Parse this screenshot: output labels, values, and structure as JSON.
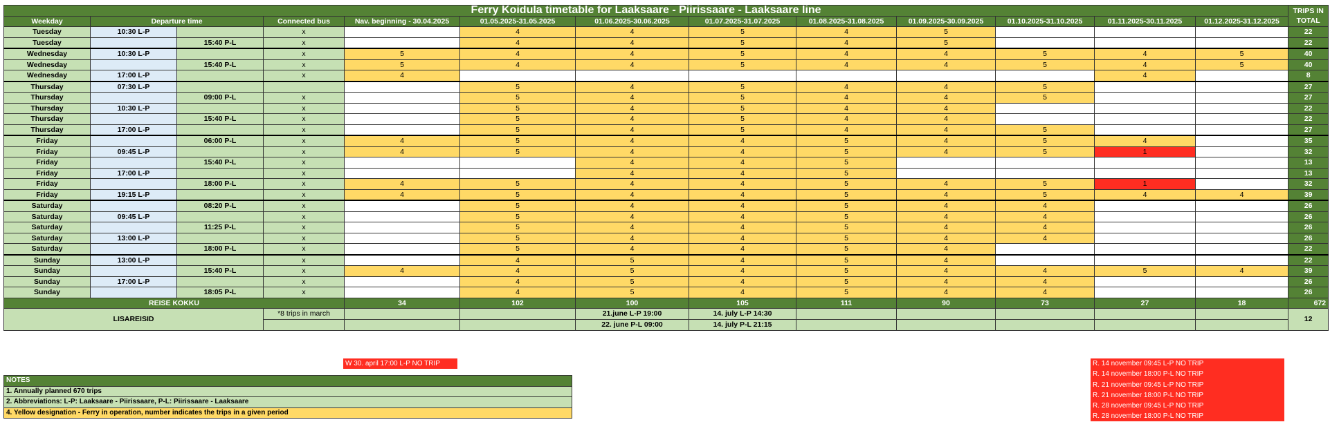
{
  "title": "Ferry Koidula timetable for Laaksaare - Piirissaare - Laaksaare line",
  "headers": {
    "weekday": "Weekday",
    "departure": "Departure time",
    "bus": "Connected bus",
    "trips_total": "TRIPS IN TOTAL",
    "periods": [
      "Nav. beginning - 30.04.2025",
      "01.05.2025-31.05.2025",
      "01.06.2025-30.06.2025",
      "01.07.2025-31.07.2025",
      "01.08.2025-31.08.2025",
      "01.09.2025-30.09.2025",
      "01.10.2025-31.10.2025",
      "01.11.2025-30.11.2025",
      "01.12.2025-31.12.2025"
    ]
  },
  "rows": [
    {
      "day": "Tuesday",
      "lp": "10:30 L-P",
      "pl": "",
      "bus": "x",
      "cells": [
        "",
        "4",
        "4",
        "5",
        "4",
        "5",
        "",
        "",
        ""
      ],
      "colors": "wyyyyywww",
      "total": "22",
      "sep": false
    },
    {
      "day": "Tuesday",
      "lp": "",
      "pl": "15:40 P-L",
      "bus": "x",
      "cells": [
        "",
        "4",
        "4",
        "5",
        "4",
        "5",
        "",
        "",
        ""
      ],
      "colors": "wyyyyywww",
      "total": "22",
      "sep": false
    },
    {
      "day": "Wednesday",
      "lp": "10:30 L-P",
      "pl": "",
      "bus": "x",
      "cells": [
        "5",
        "4",
        "4",
        "5",
        "4",
        "4",
        "5",
        "4",
        "5"
      ],
      "colors": "yyyyyyyyy",
      "total": "40",
      "sep": true
    },
    {
      "day": "Wednesday",
      "lp": "",
      "pl": "15:40 P-L",
      "bus": "x",
      "cells": [
        "5",
        "4",
        "4",
        "5",
        "4",
        "4",
        "5",
        "4",
        "5"
      ],
      "colors": "yyyyyyyyy",
      "total": "40",
      "sep": false
    },
    {
      "day": "Wednesday",
      "lp": "17:00 L-P",
      "pl": "",
      "bus": "x",
      "cells": [
        "4",
        "",
        "",
        "",
        "",
        "",
        "",
        "4",
        ""
      ],
      "colors": "ywwwwwwyw",
      "total": "8",
      "sep": false
    },
    {
      "day": "Thursday",
      "lp": "07:30 L-P",
      "pl": "",
      "bus": "",
      "cells": [
        "",
        "5",
        "4",
        "5",
        "4",
        "4",
        "5",
        "",
        ""
      ],
      "colors": "wyyyyyyww",
      "total": "27",
      "sep": true
    },
    {
      "day": "Thursday",
      "lp": "",
      "pl": "09:00 P-L",
      "bus": "x",
      "cells": [
        "",
        "5",
        "4",
        "5",
        "4",
        "4",
        "5",
        "",
        ""
      ],
      "colors": "wyyyyyyww",
      "total": "27",
      "sep": false
    },
    {
      "day": "Thursday",
      "lp": "10:30 L-P",
      "pl": "",
      "bus": "x",
      "cells": [
        "",
        "5",
        "4",
        "5",
        "4",
        "4",
        "",
        "",
        ""
      ],
      "colors": "wyyyyywww",
      "total": "22",
      "sep": false
    },
    {
      "day": "Thursday",
      "lp": "",
      "pl": "15:40 P-L",
      "bus": "x",
      "cells": [
        "",
        "5",
        "4",
        "5",
        "4",
        "4",
        "",
        "",
        ""
      ],
      "colors": "wyyyyywww",
      "total": "22",
      "sep": false
    },
    {
      "day": "Thursday",
      "lp": "17:00 L-P",
      "pl": "",
      "bus": "x",
      "cells": [
        "",
        "5",
        "4",
        "5",
        "4",
        "4",
        "5",
        "",
        ""
      ],
      "colors": "wyyyyyyww",
      "total": "27",
      "sep": false
    },
    {
      "day": "Friday",
      "lp": "",
      "pl": "06:00 P-L",
      "bus": "x",
      "cells": [
        "4",
        "5",
        "4",
        "4",
        "5",
        "4",
        "5",
        "4",
        ""
      ],
      "colors": "yyyyyyyyw",
      "total": "35",
      "sep": true
    },
    {
      "day": "Friday",
      "lp": "09:45 L-P",
      "pl": "",
      "bus": "x",
      "cells": [
        "4",
        "5",
        "4",
        "4",
        "5",
        "4",
        "5",
        "1",
        ""
      ],
      "colors": "yyyyyyyrw",
      "total": "32",
      "sep": false
    },
    {
      "day": "Friday",
      "lp": "",
      "pl": "15:40 P-L",
      "bus": "x",
      "cells": [
        "",
        "",
        "4",
        "4",
        "5",
        "",
        "",
        "",
        ""
      ],
      "colors": "wwyyywwww",
      "total": "13",
      "sep": false
    },
    {
      "day": "Friday",
      "lp": "17:00 L-P",
      "pl": "",
      "bus": "x",
      "cells": [
        "",
        "",
        "4",
        "4",
        "5",
        "",
        "",
        "",
        ""
      ],
      "colors": "wwyyywwww",
      "total": "13",
      "sep": false
    },
    {
      "day": "Friday",
      "lp": "",
      "pl": "18:00 P-L",
      "bus": "x",
      "cells": [
        "4",
        "5",
        "4",
        "4",
        "5",
        "4",
        "5",
        "1",
        ""
      ],
      "colors": "yyyyyyyrw",
      "total": "32",
      "sep": false
    },
    {
      "day": "Friday",
      "lp": "19:15 L-P",
      "pl": "",
      "bus": "x",
      "cells": [
        "4",
        "5",
        "4",
        "4",
        "5",
        "4",
        "5",
        "4",
        "4"
      ],
      "colors": "yyyyyyyyy",
      "total": "39",
      "sep": false
    },
    {
      "day": "Saturday",
      "lp": "",
      "pl": "08:20 P-L",
      "bus": "x",
      "cells": [
        "",
        "5",
        "4",
        "4",
        "5",
        "4",
        "4",
        "",
        ""
      ],
      "colors": "wyyyyyyww",
      "total": "26",
      "sep": true
    },
    {
      "day": "Saturday",
      "lp": "09:45 L-P",
      "pl": "",
      "bus": "x",
      "cells": [
        "",
        "5",
        "4",
        "4",
        "5",
        "4",
        "4",
        "",
        ""
      ],
      "colors": "wyyyyyyww",
      "total": "26",
      "sep": false
    },
    {
      "day": "Saturday",
      "lp": "",
      "pl": "11:25 P-L",
      "bus": "x",
      "cells": [
        "",
        "5",
        "4",
        "4",
        "5",
        "4",
        "4",
        "",
        ""
      ],
      "colors": "wyyyyyyww",
      "total": "26",
      "sep": false
    },
    {
      "day": "Saturday",
      "lp": "13:00 L-P",
      "pl": "",
      "bus": "x",
      "cells": [
        "",
        "5",
        "4",
        "4",
        "5",
        "4",
        "4",
        "",
        ""
      ],
      "colors": "wyyyyyyww",
      "total": "26",
      "sep": false
    },
    {
      "day": "Saturday",
      "lp": "",
      "pl": "18:00 P-L",
      "bus": "x",
      "cells": [
        "",
        "5",
        "4",
        "4",
        "5",
        "4",
        "",
        "",
        ""
      ],
      "colors": "wyyyyywww",
      "total": "22",
      "sep": false
    },
    {
      "day": "Sunday",
      "lp": "13:00 L-P",
      "pl": "",
      "bus": "x",
      "cells": [
        "",
        "4",
        "5",
        "4",
        "5",
        "4",
        "",
        "",
        ""
      ],
      "colors": "wyyyyywww",
      "total": "22",
      "sep": true
    },
    {
      "day": "Sunday",
      "lp": "",
      "pl": "15:40 P-L",
      "bus": "x",
      "cells": [
        "4",
        "4",
        "5",
        "4",
        "5",
        "4",
        "4",
        "5",
        "4"
      ],
      "colors": "yyyyyyyyy",
      "total": "39",
      "sep": false
    },
    {
      "day": "Sunday",
      "lp": "17:00 L-P",
      "pl": "",
      "bus": "x",
      "cells": [
        "",
        "4",
        "5",
        "4",
        "5",
        "4",
        "4",
        "",
        ""
      ],
      "colors": "wyyyyyyww",
      "total": "26",
      "sep": false
    },
    {
      "day": "Sunday",
      "lp": "",
      "pl": "18:05 P-L",
      "bus": "x",
      "cells": [
        "",
        "4",
        "5",
        "4",
        "5",
        "4",
        "4",
        "",
        ""
      ],
      "colors": "wyyyyyyww",
      "total": "26",
      "sep": false
    }
  ],
  "summary": {
    "label": "REISE KOKKU",
    "values": [
      "34",
      "102",
      "100",
      "105",
      "111",
      "90",
      "73",
      "27",
      "18"
    ],
    "total": "672"
  },
  "extra": {
    "label": "LISAREISID",
    "note": "*8 trips in march",
    "june": [
      "21.june L-P 19:00",
      "22. june P-L 09:00"
    ],
    "july": [
      "14. july L-P 14:30",
      "14. july P-L 21:15"
    ],
    "total": "12"
  },
  "april_note": "W 30. april 17:00 L-P NO TRIP",
  "november_notes": [
    "R. 14 november 09:45 L-P NO TRIP",
    "R. 14 november 18:00 P-L NO TRIP",
    "R. 21 november 09:45 L-P NO TRIP",
    "R. 21 november 18:00 P-L NO TRIP",
    "R. 28 november 09:45 L-P NO TRIP",
    "R. 28 november 18:00 P-L NO TRIP"
  ],
  "notes": {
    "header": "NOTES",
    "items": [
      "1. Annually planned 670 trips",
      "2. Abbreviations: L-P: Laaksaare - Piirissaare, P-L: Piirissaare - Laaksaare",
      "4. Yellow designation - Ferry in operation, number indicates the trips in a given period"
    ]
  },
  "colors": {
    "header_green": "#548235",
    "light_green": "#c6e0b4",
    "light_blue": "#ddebf7",
    "yellow": "#ffd966",
    "red": "#ff2d21"
  }
}
